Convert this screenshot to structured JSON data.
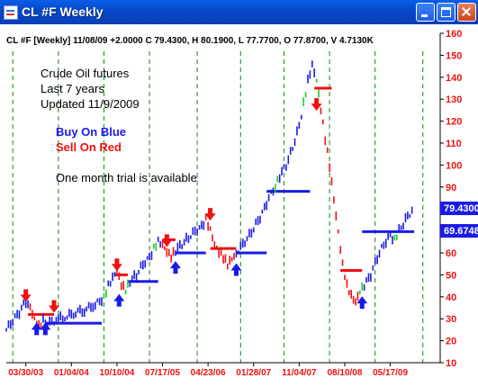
{
  "window": {
    "title": "CL #F Weekly"
  },
  "header_text": "CL #F [Weekly] 11/08/09 +2.0000 C 79.4300, H 80.1900, L 77.7700, O 77.8700, V 4.7130K",
  "annotations": {
    "line1": "Crude Oil futures",
    "line2": "Last 7 years",
    "line3": "Updated 11/9/2009",
    "buy": "Buy On Blue",
    "sell": "Sell On Red",
    "trial": "One month trial is available"
  },
  "price_badges": {
    "close": "79.4300",
    "stop": "69.6748"
  },
  "colors": {
    "buy": "#1a1ae6",
    "sell": "#ee1111",
    "neutral": "#22cc22",
    "axis_text": "#ee1111",
    "grid": "#118811"
  },
  "chart_data": {
    "type": "ohlc-bars",
    "ylim": [
      10,
      160
    ],
    "y_ticks": [
      10,
      20,
      30,
      40,
      50,
      60,
      70,
      80,
      90,
      100,
      110,
      120,
      130,
      140,
      150,
      160
    ],
    "x_tick_labels": [
      "03/30/03",
      "01/04/04",
      "10/10/04",
      "07/17/05",
      "04/23/06",
      "01/28/07",
      "11/04/07",
      "08/10/08",
      "05/17/09"
    ],
    "series": [
      {
        "x": 0,
        "y": 25,
        "c": "b"
      },
      {
        "x": 1.5,
        "y": 29,
        "c": "b"
      },
      {
        "x": 3,
        "y": 33,
        "c": "b"
      },
      {
        "x": 4.5,
        "y": 38,
        "c": "b"
      },
      {
        "x": 5.5,
        "y": 36,
        "c": "r"
      },
      {
        "x": 6.5,
        "y": 30,
        "c": "r"
      },
      {
        "x": 7.5,
        "y": 27,
        "c": "r"
      },
      {
        "x": 8.5,
        "y": 29,
        "c": "b"
      },
      {
        "x": 10,
        "y": 28,
        "c": "b"
      },
      {
        "x": 12,
        "y": 30,
        "c": "b"
      },
      {
        "x": 14,
        "y": 31,
        "c": "b"
      },
      {
        "x": 16,
        "y": 33,
        "c": "b"
      },
      {
        "x": 18,
        "y": 34,
        "c": "b"
      },
      {
        "x": 20,
        "y": 36,
        "c": "b"
      },
      {
        "x": 21.5,
        "y": 38,
        "c": "b"
      },
      {
        "x": 22.5,
        "y": 40,
        "c": "g"
      },
      {
        "x": 23.5,
        "y": 45,
        "c": "b"
      },
      {
        "x": 24.5,
        "y": 48,
        "c": "b"
      },
      {
        "x": 25.5,
        "y": 52,
        "c": "r"
      },
      {
        "x": 26.5,
        "y": 45,
        "c": "r"
      },
      {
        "x": 27.5,
        "y": 43,
        "c": "g"
      },
      {
        "x": 28.5,
        "y": 47,
        "c": "b"
      },
      {
        "x": 30,
        "y": 50,
        "c": "b"
      },
      {
        "x": 31.5,
        "y": 55,
        "c": "b"
      },
      {
        "x": 33,
        "y": 58,
        "c": "b"
      },
      {
        "x": 34,
        "y": 62,
        "c": "g"
      },
      {
        "x": 35,
        "y": 65,
        "c": "b"
      },
      {
        "x": 36,
        "y": 63,
        "c": "r"
      },
      {
        "x": 37,
        "y": 60,
        "c": "r"
      },
      {
        "x": 38,
        "y": 58,
        "c": "r"
      },
      {
        "x": 39,
        "y": 61,
        "c": "b"
      },
      {
        "x": 40.5,
        "y": 64,
        "c": "b"
      },
      {
        "x": 42,
        "y": 67,
        "c": "b"
      },
      {
        "x": 43.5,
        "y": 70,
        "c": "b"
      },
      {
        "x": 45,
        "y": 72,
        "c": "b"
      },
      {
        "x": 46,
        "y": 75,
        "c": "r"
      },
      {
        "x": 47,
        "y": 70,
        "c": "r"
      },
      {
        "x": 48,
        "y": 63,
        "c": "r"
      },
      {
        "x": 49,
        "y": 60,
        "c": "r"
      },
      {
        "x": 50,
        "y": 58,
        "c": "r"
      },
      {
        "x": 51,
        "y": 55,
        "c": "r"
      },
      {
        "x": 52,
        "y": 58,
        "c": "r"
      },
      {
        "x": 53,
        "y": 60,
        "c": "b"
      },
      {
        "x": 54.5,
        "y": 64,
        "c": "b"
      },
      {
        "x": 56,
        "y": 68,
        "c": "b"
      },
      {
        "x": 57.5,
        "y": 73,
        "c": "b"
      },
      {
        "x": 59,
        "y": 78,
        "c": "b"
      },
      {
        "x": 60.5,
        "y": 85,
        "c": "b"
      },
      {
        "x": 62,
        "y": 90,
        "c": "g"
      },
      {
        "x": 63,
        "y": 95,
        "c": "b"
      },
      {
        "x": 64.5,
        "y": 100,
        "c": "b"
      },
      {
        "x": 66,
        "y": 108,
        "c": "b"
      },
      {
        "x": 67.5,
        "y": 118,
        "c": "b"
      },
      {
        "x": 68.5,
        "y": 128,
        "c": "g"
      },
      {
        "x": 69.5,
        "y": 138,
        "c": "b"
      },
      {
        "x": 70.5,
        "y": 145,
        "c": "b"
      },
      {
        "x": 71.5,
        "y": 138,
        "c": "g"
      },
      {
        "x": 72.5,
        "y": 125,
        "c": "r"
      },
      {
        "x": 73.5,
        "y": 112,
        "c": "r"
      },
      {
        "x": 74.5,
        "y": 100,
        "c": "r"
      },
      {
        "x": 75.5,
        "y": 85,
        "c": "r"
      },
      {
        "x": 76.5,
        "y": 70,
        "c": "r"
      },
      {
        "x": 77.5,
        "y": 55,
        "c": "r"
      },
      {
        "x": 78.5,
        "y": 45,
        "c": "r"
      },
      {
        "x": 79.5,
        "y": 40,
        "c": "r"
      },
      {
        "x": 80.5,
        "y": 37,
        "c": "r"
      },
      {
        "x": 81.5,
        "y": 42,
        "c": "g"
      },
      {
        "x": 82.5,
        "y": 45,
        "c": "b"
      },
      {
        "x": 84,
        "y": 50,
        "c": "b"
      },
      {
        "x": 85.5,
        "y": 58,
        "c": "b"
      },
      {
        "x": 87,
        "y": 64,
        "c": "b"
      },
      {
        "x": 88.5,
        "y": 68,
        "c": "b"
      },
      {
        "x": 89.5,
        "y": 66,
        "c": "g"
      },
      {
        "x": 90.5,
        "y": 70,
        "c": "b"
      },
      {
        "x": 92,
        "y": 75,
        "c": "b"
      },
      {
        "x": 93.5,
        "y": 79.43,
        "c": "b"
      }
    ],
    "buy_arrows": [
      {
        "x": 7,
        "y": 25
      },
      {
        "x": 9,
        "y": 25
      },
      {
        "x": 26,
        "y": 38
      },
      {
        "x": 39,
        "y": 53
      },
      {
        "x": 53,
        "y": 52
      },
      {
        "x": 82,
        "y": 37
      }
    ],
    "sell_arrows": [
      {
        "x": 4.5,
        "y": 41
      },
      {
        "x": 11,
        "y": 36
      },
      {
        "x": 25.5,
        "y": 55
      },
      {
        "x": 37,
        "y": 66
      },
      {
        "x": 47,
        "y": 78
      },
      {
        "x": 71.5,
        "y": 128
      }
    ],
    "sell_stops": [
      {
        "x1": 5,
        "x2": 11,
        "y": 32
      },
      {
        "x1": 25,
        "x2": 28,
        "y": 50
      },
      {
        "x1": 36,
        "x2": 39,
        "y": 66
      },
      {
        "x1": 47,
        "x2": 53,
        "y": 62
      },
      {
        "x1": 71,
        "x2": 75,
        "y": 135
      },
      {
        "x1": 77,
        "x2": 82,
        "y": 52
      }
    ],
    "buy_stops": [
      {
        "x1": 9,
        "x2": 22,
        "y": 28
      },
      {
        "x1": 28,
        "x2": 35,
        "y": 47
      },
      {
        "x1": 39,
        "x2": 46,
        "y": 60
      },
      {
        "x1": 53,
        "x2": 60,
        "y": 60
      },
      {
        "x1": 60,
        "x2": 70,
        "y": 88
      },
      {
        "x1": 82,
        "x2": 94,
        "y": 69.67
      }
    ],
    "dashed_verticals": [
      1.5,
      12,
      22.5,
      33,
      44,
      54,
      64,
      74.5,
      85,
      96
    ],
    "x_tick_positions": [
      4.5,
      15,
      25.5,
      36,
      46.5,
      57,
      67.5,
      78,
      88.5
    ],
    "x_range": [
      0,
      100
    ]
  }
}
